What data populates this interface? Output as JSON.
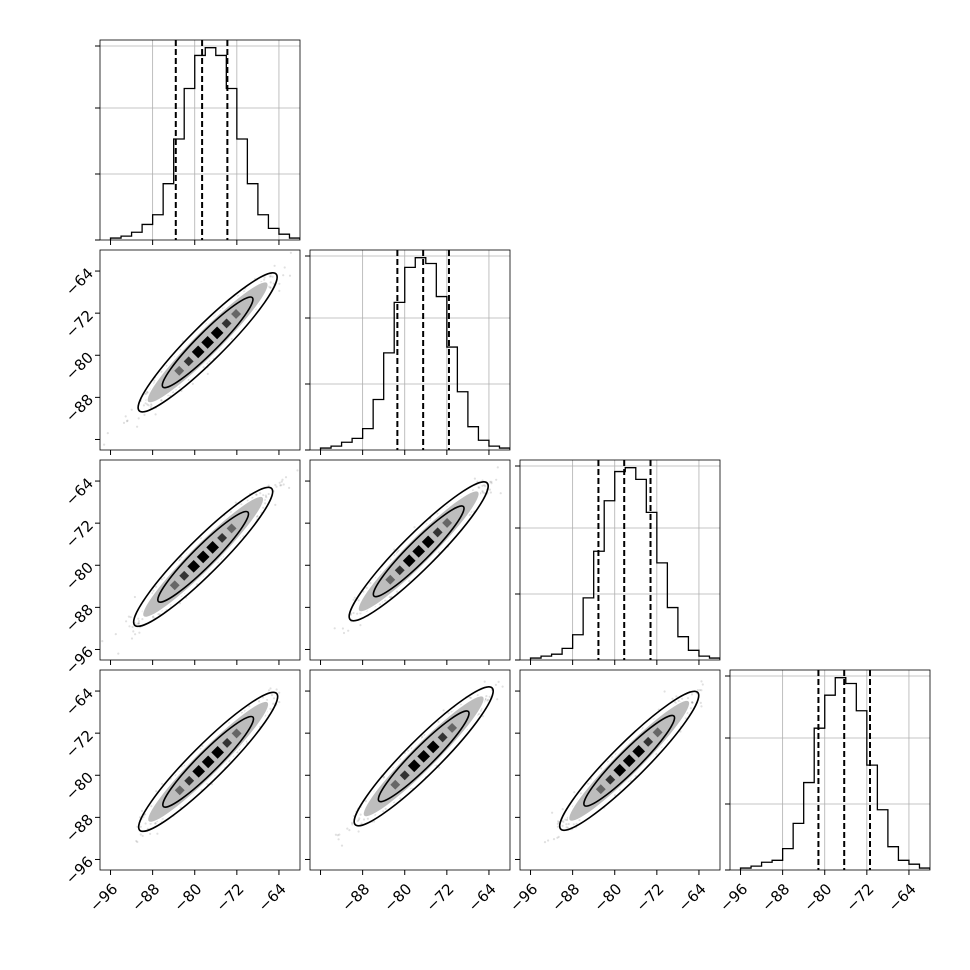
{
  "chart_data": {
    "type": "corner",
    "dim": 4,
    "axis_range": [
      -98,
      -60
    ],
    "tick_values": [
      -96,
      -88,
      -80,
      -72,
      -64
    ],
    "bottom_tick_labels": [
      [
        "−96",
        "−88",
        "−80",
        "−72",
        "−64"
      ],
      [
        "−88",
        "−80",
        "−72",
        "−64"
      ],
      [
        "−96",
        "−88",
        "−80",
        "−72",
        "−64"
      ],
      [
        "−96",
        "−88",
        "−80",
        "−72",
        "−64"
      ]
    ],
    "left_tick_labels": [
      [
        "−64",
        "−72",
        "−80",
        "−88"
      ],
      [
        "−64",
        "−72",
        "−80",
        "−88",
        "−96"
      ],
      [
        "−64",
        "−72",
        "−80",
        "−88",
        "−96"
      ]
    ],
    "grid": true,
    "histograms": [
      {
        "bins": [
          -96,
          -94,
          -92,
          -90,
          -88,
          -86,
          -84,
          -82,
          -80,
          -78,
          -76,
          -74,
          -72,
          -70,
          -68,
          -66,
          -64,
          -62,
          -60
        ],
        "counts": [
          1,
          2,
          4,
          8,
          13,
          29,
          52,
          78,
          95,
          99,
          95,
          78,
          52,
          29,
          13,
          6,
          3,
          1
        ],
        "quantiles": [
          -83.6,
          -78.6,
          -73.8
        ]
      },
      {
        "bins": [
          -96,
          -94,
          -92,
          -90,
          -88,
          -86,
          -84,
          -82,
          -80,
          -78,
          -76,
          -74,
          -72,
          -70,
          -68,
          -66,
          -64,
          -62,
          -60
        ],
        "counts": [
          1,
          2,
          4,
          6,
          11,
          26,
          50,
          76,
          94,
          99,
          96,
          79,
          53,
          30,
          12,
          5,
          2,
          1
        ],
        "quantiles": [
          -81.4,
          -76.5,
          -71.6
        ]
      },
      {
        "bins": [
          -96,
          -94,
          -92,
          -90,
          -88,
          -86,
          -84,
          -82,
          -80,
          -78,
          -76,
          -74,
          -72,
          -70,
          -68,
          -66,
          -64,
          -62,
          -60
        ],
        "counts": [
          1,
          2,
          3,
          6,
          13,
          32,
          56,
          82,
          97,
          99,
          93,
          76,
          50,
          27,
          12,
          5,
          2,
          1
        ],
        "quantiles": [
          -83.1,
          -78.2,
          -73.2
        ]
      },
      {
        "bins": [
          -96,
          -94,
          -92,
          -90,
          -88,
          -86,
          -84,
          -82,
          -80,
          -78,
          -76,
          -74,
          -72,
          -70,
          -68,
          -66,
          -64,
          -62,
          -60
        ],
        "counts": [
          1,
          2,
          4,
          5,
          11,
          24,
          45,
          73,
          90,
          99,
          96,
          82,
          54,
          31,
          12,
          5,
          3,
          1
        ],
        "quantiles": [
          -81.2,
          -76.3,
          -71.4
        ]
      }
    ],
    "pair_means": {
      "0": -78.6,
      "1": -76.5,
      "2": -78.2,
      "3": -76.3
    },
    "pair_halfwidth_sigma1": 1.4,
    "pair_halfwidth_sigma2": 2.3
  }
}
